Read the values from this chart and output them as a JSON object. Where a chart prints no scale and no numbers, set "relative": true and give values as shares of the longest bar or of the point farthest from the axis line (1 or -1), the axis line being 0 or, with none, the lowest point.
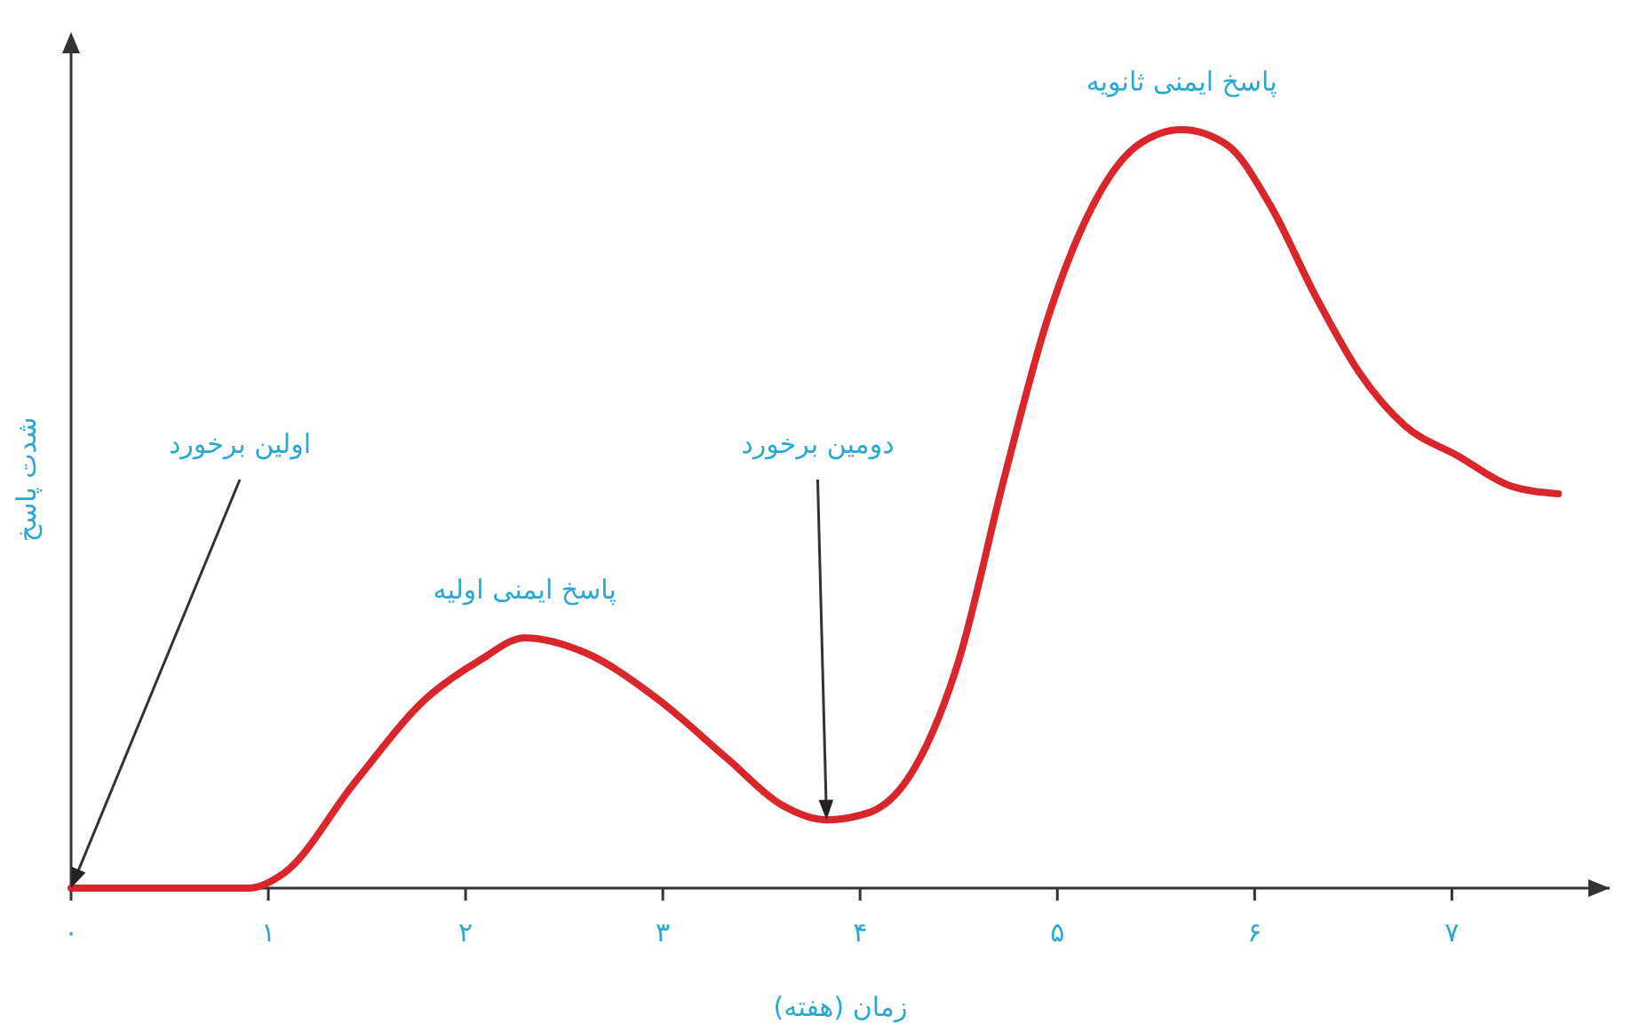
{
  "chart_data": {
    "type": "line",
    "relative": true,
    "xlabel": "زمان (هفته)",
    "ylabel": "شدت پاسخ",
    "xlim": [
      0,
      7.8
    ],
    "xticks": [
      {
        "value": 0,
        "label": "۰"
      },
      {
        "value": 1,
        "label": "۱"
      },
      {
        "value": 2,
        "label": "۲"
      },
      {
        "value": 3,
        "label": "۳"
      },
      {
        "value": 4,
        "label": "۴"
      },
      {
        "value": 5,
        "label": "۵"
      },
      {
        "value": 6,
        "label": "۶"
      },
      {
        "value": 7,
        "label": "۷"
      }
    ],
    "series": [
      {
        "color": "#d9262c",
        "x": [
          0,
          0.9,
          1.08,
          1.44,
          1.8,
          2.07,
          2.3,
          2.61,
          2.97,
          3.33,
          3.6,
          3.83,
          4.05,
          4.28,
          4.5,
          4.73,
          4.95,
          5.18,
          5.41,
          5.63,
          5.86,
          6.08,
          6.31,
          6.53,
          6.76,
          7.03,
          7.3,
          7.54
        ],
        "values": [
          0,
          0,
          0.02,
          0.14,
          0.25,
          0.3,
          0.33,
          0.31,
          0.25,
          0.17,
          0.11,
          0.09,
          0.1,
          0.16,
          0.3,
          0.54,
          0.75,
          0.9,
          0.98,
          1,
          0.98,
          0.9,
          0.78,
          0.68,
          0.61,
          0.57,
          0.53,
          0.52
        ]
      }
    ],
    "annotations": [
      {
        "text": "اولین برخورد",
        "x": 0,
        "y": 0
      },
      {
        "text": "پاسخ ایمنی اولیه",
        "x": 2.3,
        "y": 0.33
      },
      {
        "text": "دومین برخورد",
        "x": 3.83,
        "y": 0.09
      },
      {
        "text": "پاسخ ایمنی ثانویه",
        "x": 5.63,
        "y": 1
      }
    ],
    "grid": false,
    "legend": false,
    "marker": "none",
    "line_style": "solid"
  }
}
